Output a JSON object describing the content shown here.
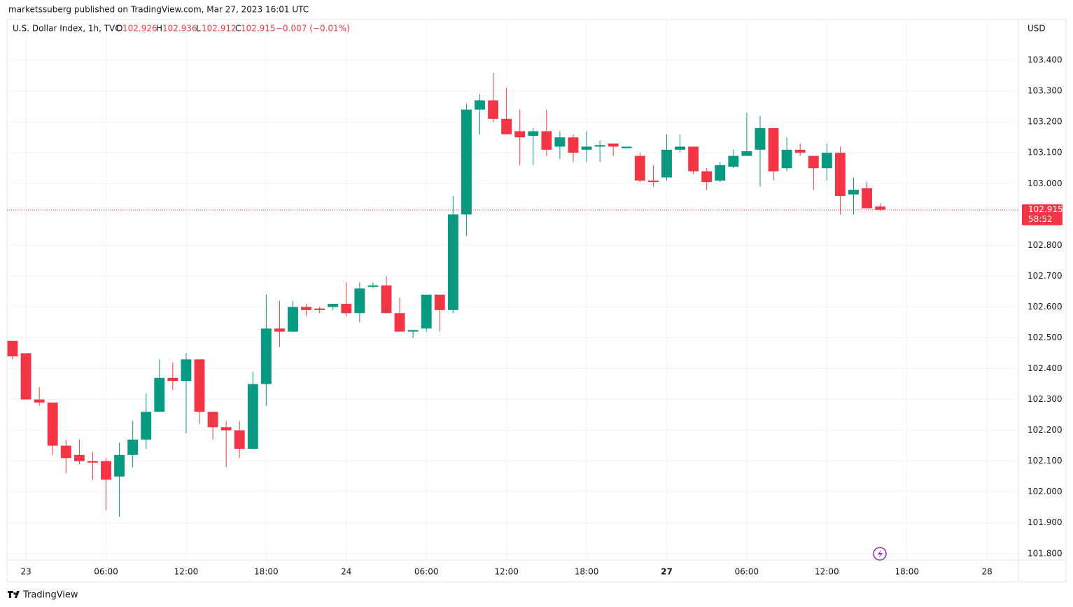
{
  "chart_data": {
    "type": "candlestick",
    "attribution": "marketssuberg published on TradingView.com, Mar 27, 2023 16:01 UTC",
    "title": "U.S. Dollar Index, 1h, TVC",
    "legend": {
      "o_label": "O",
      "open": 102.926,
      "h_label": "H",
      "high": 102.936,
      "l_label": "L",
      "low": 102.912,
      "c_label": "C",
      "close": 102.915,
      "change": "−0.007 (−0.01%)"
    },
    "currency": "USD",
    "last_price": 102.915,
    "countdown": "58:52",
    "brand": "TradingView",
    "up_color": "#089981",
    "down_color": "#f23645",
    "open": [
      102.49,
      102.45,
      102.3,
      102.29,
      102.15,
      102.12,
      102.1,
      102.1,
      102.05,
      102.12,
      102.17,
      102.26,
      102.37,
      102.36,
      102.43,
      102.26,
      102.21,
      102.2,
      102.14,
      102.35,
      102.53,
      102.52,
      102.6,
      102.595,
      102.6,
      102.61,
      102.58,
      102.665,
      102.67,
      102.58,
      102.52,
      102.53,
      102.64,
      102.59,
      102.9,
      103.24,
      103.27,
      103.21,
      103.17,
      103.155,
      103.17,
      103.12,
      103.15,
      103.11,
      103.12,
      103.13,
      103.115,
      103.09,
      103.01,
      103.02,
      103.11,
      103.12,
      103.04,
      103.01,
      103.055,
      103.09,
      103.11,
      103.18,
      103.05,
      103.11,
      103.09,
      103.05,
      103.1,
      102.965,
      102.985,
      102.926
    ],
    "high": [
      102.49,
      102.45,
      102.34,
      102.29,
      102.17,
      102.17,
      102.13,
      102.11,
      102.16,
      102.23,
      102.32,
      102.43,
      102.42,
      102.45,
      102.43,
      102.26,
      102.23,
      102.23,
      102.39,
      102.64,
      102.62,
      102.62,
      102.61,
      102.6,
      102.61,
      102.68,
      102.68,
      102.68,
      102.7,
      102.63,
      102.525,
      102.64,
      102.64,
      102.96,
      103.26,
      103.29,
      103.36,
      103.31,
      103.24,
      103.18,
      103.24,
      103.17,
      103.16,
      103.17,
      103.14,
      103.13,
      103.12,
      103.1,
      103.06,
      103.16,
      103.16,
      103.12,
      103.05,
      103.07,
      103.11,
      103.23,
      103.22,
      103.18,
      103.15,
      103.13,
      103.09,
      103.13,
      103.12,
      103.02,
      103.005,
      102.936
    ],
    "low": [
      102.43,
      102.3,
      102.28,
      102.12,
      102.06,
      102.09,
      102.04,
      101.94,
      101.92,
      102.08,
      102.14,
      102.26,
      102.33,
      102.19,
      102.22,
      102.17,
      102.08,
      102.11,
      102.14,
      102.28,
      102.47,
      102.52,
      102.57,
      102.58,
      102.59,
      102.57,
      102.55,
      102.66,
      102.58,
      102.52,
      102.5,
      102.52,
      102.52,
      102.58,
      102.83,
      103.16,
      103.2,
      103.16,
      103.06,
      103.06,
      103.09,
      103.08,
      103.07,
      103.07,
      103.07,
      103.09,
      103.115,
      103.005,
      102.99,
      103.01,
      103.1,
      103.03,
      102.98,
      103.005,
      103.05,
      103.09,
      102.99,
      103.01,
      103.04,
      103.09,
      102.98,
      103.01,
      102.9,
      102.9,
      102.92,
      102.912
    ],
    "close": [
      102.44,
      102.3,
      102.29,
      102.15,
      102.11,
      102.1,
      102.095,
      102.04,
      102.12,
      102.17,
      102.26,
      102.37,
      102.36,
      102.43,
      102.26,
      102.21,
      102.2,
      102.14,
      102.35,
      102.53,
      102.52,
      102.6,
      102.59,
      102.59,
      102.61,
      102.58,
      102.66,
      102.67,
      102.58,
      102.52,
      102.525,
      102.64,
      102.59,
      102.9,
      103.24,
      103.27,
      103.21,
      103.16,
      103.15,
      103.17,
      103.11,
      103.15,
      103.1,
      103.12,
      103.125,
      103.12,
      103.12,
      103.01,
      103.005,
      103.11,
      103.12,
      103.04,
      103.005,
      103.06,
      103.09,
      103.105,
      103.18,
      103.04,
      103.11,
      103.1,
      103.05,
      103.1,
      102.96,
      102.98,
      102.92,
      102.915
    ],
    "xlim": [
      -0.42,
      75.35
    ],
    "xticks": [
      {
        "value": 1,
        "label": "23"
      },
      {
        "value": 7,
        "label": "06:00"
      },
      {
        "value": 13,
        "label": "12:00"
      },
      {
        "value": 19,
        "label": "18:00"
      },
      {
        "value": 25,
        "label": "24"
      },
      {
        "value": 31,
        "label": "06:00"
      },
      {
        "value": 37,
        "label": "12:00"
      },
      {
        "value": 43,
        "label": "18:00"
      },
      {
        "value": 49,
        "label": "27",
        "bold": true
      },
      {
        "value": 55,
        "label": "06:00"
      },
      {
        "value": 61,
        "label": "12:00"
      },
      {
        "value": 67,
        "label": "18:00"
      },
      {
        "value": 73,
        "label": "28"
      }
    ],
    "ylim": [
      101.779,
      103.532
    ],
    "yticks": [
      {
        "value": 101.8,
        "label": "101.800"
      },
      {
        "value": 101.9,
        "label": "101.900"
      },
      {
        "value": 102.0,
        "label": "102.000"
      },
      {
        "value": 102.1,
        "label": "102.100"
      },
      {
        "value": 102.2,
        "label": "102.200"
      },
      {
        "value": 102.3,
        "label": "102.300"
      },
      {
        "value": 102.4,
        "label": "102.400"
      },
      {
        "value": 102.5,
        "label": "102.500"
      },
      {
        "value": 102.6,
        "label": "102.600"
      },
      {
        "value": 102.7,
        "label": "102.700"
      },
      {
        "value": 102.8,
        "label": "102.800"
      },
      {
        "value": 102.9,
        "label": "102.900"
      },
      {
        "value": 103.0,
        "label": "103.000"
      },
      {
        "value": 103.1,
        "label": "103.100"
      },
      {
        "value": 103.2,
        "label": "103.200"
      },
      {
        "value": 103.3,
        "label": "103.300"
      },
      {
        "value": 103.4,
        "label": "103.400"
      }
    ],
    "grid": true
  }
}
